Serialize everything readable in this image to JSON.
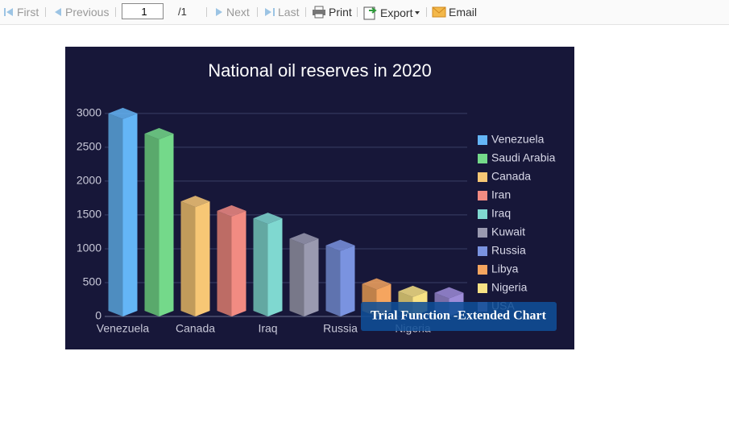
{
  "toolbar": {
    "first": "First",
    "previous": "Previous",
    "page": "1",
    "page_total": "/1",
    "next": "Next",
    "last": "Last",
    "print": "Print",
    "export": "Export",
    "email": "Email"
  },
  "chart_data": {
    "type": "bar3d",
    "title": "National oil reserves in 2020",
    "categories": [
      "Venezuela",
      "Saudi Arabia",
      "Canada",
      "Iran",
      "Iraq",
      "Kuwait",
      "Russia",
      "Libya",
      "Nigeria",
      "USA"
    ],
    "values": [
      3000,
      2700,
      1700,
      1560,
      1450,
      1150,
      1050,
      480,
      370,
      350
    ],
    "colors": [
      "#64b5f6",
      "#74d98a",
      "#f7c775",
      "#f28b82",
      "#7fd8d0",
      "#9a9ab0",
      "#7a93e0",
      "#f5a55f",
      "#f7e184",
      "#9d8cd8"
    ],
    "x_label_step": 2,
    "ylim": [
      0,
      3200
    ],
    "yticks": [
      0,
      500,
      1000,
      1500,
      2000,
      2500,
      3000
    ],
    "grid": true,
    "legend": "right",
    "watermark": "Trial Function -Extended Chart"
  }
}
